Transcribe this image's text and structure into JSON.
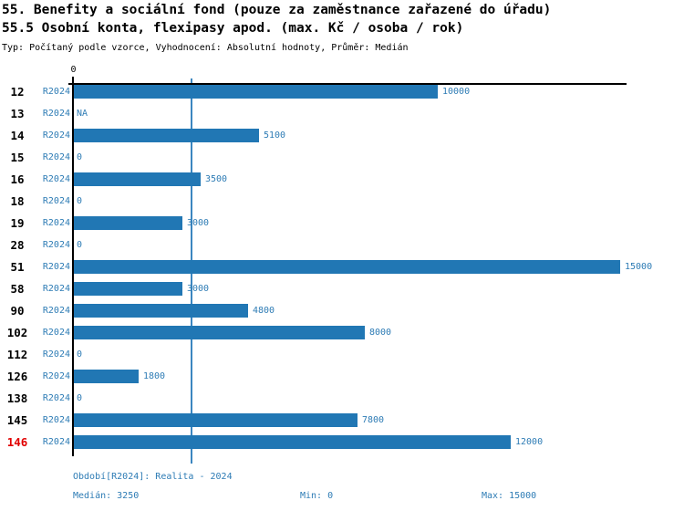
{
  "header": {
    "title_line1": "55. Benefity a sociální fond (pouze za zaměstnance zařazené do úřadu)",
    "title_line2": "55.5 Osobní konta, flexipasy apod. (max. Kč / osoba / rok)",
    "subtitle": "Typ: Počítaný podle vzorce, Vyhodnocení: Absolutní hodnoty, Průměr: Medián"
  },
  "chart_data": {
    "type": "bar",
    "orientation": "horizontal",
    "title": "55. Benefity a sociální fond (pouze za zaměstnance zařazené do úřadu)",
    "subtitle": "55.5 Osobní konta, flexipasy apod. (max. Kč / osoba / rok)",
    "categories": [
      "12",
      "13",
      "14",
      "15",
      "16",
      "18",
      "19",
      "28",
      "51",
      "58",
      "90",
      "102",
      "112",
      "126",
      "138",
      "145",
      "146"
    ],
    "series": [
      {
        "name": "R2024",
        "values": [
          10000,
          null,
          5100,
          0,
          3500,
          0,
          3000,
          0,
          15000,
          3000,
          4800,
          8000,
          0,
          1800,
          0,
          7800,
          12000
        ]
      }
    ],
    "value_labels": [
      "10000",
      "NA",
      "5100",
      "0",
      "3500",
      "0",
      "3000",
      "0",
      "15000",
      "3000",
      "4800",
      "8000",
      "0",
      "1800",
      "0",
      "7800",
      "12000"
    ],
    "highlighted_category": "146",
    "x_tick_label": "0",
    "x_ticks": [
      0
    ],
    "xlim": [
      0,
      15000
    ],
    "median_line_value": 3250,
    "grid": false,
    "legend": false
  },
  "footer": {
    "period_label": "Období[R2024]: Realita - 2024",
    "median_label": "Medián: 3250",
    "min_label": "Min: 0",
    "max_label": "Max: 15000"
  },
  "colors": {
    "bar": "#2177b4",
    "text_blue": "#2e7cb5",
    "median_line": "#3b86c0",
    "highlight_red": "#e10000",
    "axis_black": "#000000"
  }
}
